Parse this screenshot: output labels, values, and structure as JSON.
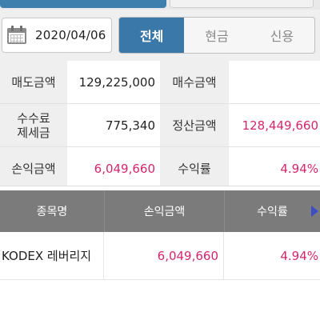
{
  "filter": {
    "date": "2020/04/06",
    "tabs": [
      {
        "label": "전체",
        "active": true
      },
      {
        "label": "현금",
        "active": false
      },
      {
        "label": "신용",
        "active": false
      }
    ]
  },
  "summary": {
    "sell_amount_label": "매도금액",
    "sell_amount": "129,225,000",
    "buy_amount_label": "매수금액",
    "buy_amount": "",
    "fee_tax_label_line1": "수수료",
    "fee_tax_label_line2": "제세금",
    "fee_tax": "775,340",
    "settlement_label": "정산금액",
    "settlement": "128,449,660",
    "pnl_label": "손익금액",
    "pnl": "6,049,660",
    "return_label": "수익률",
    "return": "4.94%"
  },
  "table": {
    "headers": [
      "종목명",
      "손익금액",
      "수익률"
    ],
    "rows": [
      {
        "name": "KODEX 레버리지",
        "pnl": "6,049,660",
        "return": "4.94%"
      }
    ]
  },
  "colors": {
    "accent": "#3a78a9",
    "positive": "#d4266e",
    "header_bg": "#7b7b7b"
  }
}
